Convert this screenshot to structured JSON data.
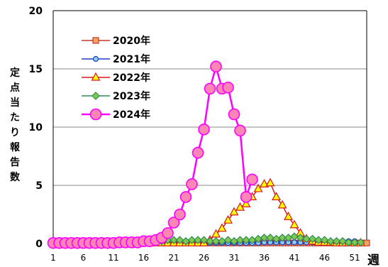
{
  "chart_data": {
    "type": "line",
    "ylabel": "定点当たり報告数",
    "xlabel": "週",
    "ylim": [
      0,
      20
    ],
    "yticks": [
      0,
      5,
      10,
      15,
      20
    ],
    "xlim": [
      1,
      53
    ],
    "xticks": [
      1,
      6,
      11,
      16,
      21,
      26,
      31,
      36,
      41,
      46,
      51
    ],
    "grid": "horizontal",
    "legend_position": "upper-left",
    "series": [
      {
        "name": "2020年",
        "color": "#c0392b",
        "fill": "#f4a460",
        "marker": "square",
        "x": [
          1,
          2,
          3,
          4,
          5,
          6,
          7,
          8,
          9,
          10,
          11,
          12,
          13,
          14,
          15,
          16,
          17,
          18,
          19,
          20,
          21,
          22,
          23,
          24,
          25,
          26,
          27,
          28,
          29,
          30,
          31,
          32,
          33,
          34,
          35,
          36,
          37,
          38,
          39,
          40,
          41,
          42,
          43,
          44,
          45,
          46,
          47,
          48,
          49,
          50,
          51,
          52,
          53
        ],
        "y": [
          0.2,
          0.2,
          0.1,
          0.1,
          0.1,
          0.05,
          0.05,
          0.05,
          0.05,
          0.05,
          0.05,
          0.05,
          0.05,
          0.05,
          0.05,
          0.05,
          0.05,
          0.05,
          0.05,
          0.05,
          0.05,
          0.05,
          0.05,
          0.05,
          0.05,
          0.05,
          0.05,
          0.05,
          0.05,
          0.05,
          0.05,
          0.05,
          0.05,
          0.05,
          0.05,
          0.05,
          0.05,
          0.05,
          0.05,
          0.05,
          0.05,
          0.05,
          0.05,
          0.05,
          0.05,
          0.05,
          0.05,
          0.05,
          0.05,
          0.05,
          0.05,
          0.05,
          0.05
        ]
      },
      {
        "name": "2021年",
        "color": "#1f3fbf",
        "fill": "#87cefa",
        "marker": "circle",
        "x": [
          1,
          2,
          3,
          4,
          5,
          6,
          7,
          8,
          9,
          10,
          11,
          12,
          13,
          14,
          15,
          16,
          17,
          18,
          19,
          20,
          21,
          22,
          23,
          24,
          25,
          26,
          27,
          28,
          29,
          30,
          31,
          32,
          33,
          34,
          35,
          36,
          37,
          38,
          39,
          40,
          41,
          42,
          43,
          44,
          45,
          46,
          47,
          48,
          49,
          50,
          51,
          52
        ],
        "y": [
          0.05,
          0.05,
          0.05,
          0.05,
          0.05,
          0.05,
          0.05,
          0.05,
          0.05,
          0.05,
          0.05,
          0.05,
          0.05,
          0.05,
          0.05,
          0.05,
          0.05,
          0.05,
          0.05,
          0.05,
          0.05,
          0.05,
          0.05,
          0.05,
          0.05,
          0.05,
          0.05,
          0.05,
          0.05,
          0.05,
          0.05,
          0.05,
          0.05,
          0.05,
          0.05,
          0.1,
          0.1,
          0.1,
          0.1,
          0.1,
          0.1,
          0.1,
          0.1,
          0.1,
          0.1,
          0.1,
          0.1,
          0.1,
          0.1,
          0.2,
          0.2,
          0.1
        ]
      },
      {
        "name": "2022年",
        "color": "#d7191c",
        "fill": "#ffff00",
        "marker": "triangle",
        "x": [
          1,
          2,
          3,
          4,
          5,
          6,
          7,
          8,
          9,
          10,
          11,
          12,
          13,
          14,
          15,
          16,
          17,
          18,
          19,
          20,
          21,
          22,
          23,
          24,
          25,
          26,
          27,
          28,
          29,
          30,
          31,
          32,
          33,
          34,
          35,
          36,
          37,
          38,
          39,
          40,
          41,
          42,
          43,
          44,
          45,
          46,
          47,
          48,
          49,
          50,
          51,
          52
        ],
        "y": [
          0.05,
          0.05,
          0.05,
          0.05,
          0.05,
          0.05,
          0.05,
          0.05,
          0.05,
          0.05,
          0.05,
          0.05,
          0.05,
          0.05,
          0.05,
          0.05,
          0.05,
          0.05,
          0.05,
          0.05,
          0.05,
          0.05,
          0.05,
          0.05,
          0.05,
          0.05,
          0.3,
          0.8,
          1.3,
          2.0,
          2.7,
          3.1,
          3.4,
          4.0,
          4.7,
          5.1,
          5.2,
          4.0,
          3.3,
          2.3,
          1.6,
          0.9,
          0.4,
          0.2,
          0.1,
          0.1,
          0.1,
          0.05,
          0.05,
          0.05,
          0.05,
          0.05
        ]
      },
      {
        "name": "2023年",
        "color": "#2e8b57",
        "fill": "#7ec850",
        "marker": "diamond",
        "x": [
          1,
          2,
          3,
          4,
          5,
          6,
          7,
          8,
          9,
          10,
          11,
          12,
          13,
          14,
          15,
          16,
          17,
          18,
          19,
          20,
          21,
          22,
          23,
          24,
          25,
          26,
          27,
          28,
          29,
          30,
          31,
          32,
          33,
          34,
          35,
          36,
          37,
          38,
          39,
          40,
          41,
          42,
          43,
          44,
          45,
          46,
          47,
          48,
          49,
          50,
          51,
          52
        ],
        "y": [
          0.05,
          0.05,
          0.05,
          0.05,
          0.05,
          0.05,
          0.05,
          0.05,
          0.05,
          0.05,
          0.05,
          0.05,
          0.05,
          0.05,
          0.05,
          0.05,
          0.05,
          0.1,
          0.2,
          0.3,
          0.3,
          0.3,
          0.2,
          0.3,
          0.3,
          0.3,
          0.2,
          0.2,
          0.2,
          0.3,
          0.2,
          0.3,
          0.3,
          0.3,
          0.4,
          0.5,
          0.5,
          0.4,
          0.5,
          0.5,
          0.6,
          0.5,
          0.4,
          0.4,
          0.3,
          0.3,
          0.2,
          0.2,
          0.2,
          0.1,
          0.1,
          0.1
        ]
      },
      {
        "name": "2024年",
        "color": "#ff00ff",
        "fill": "#ff85b5",
        "marker": "circle-large",
        "x": [
          1,
          2,
          3,
          4,
          5,
          6,
          7,
          8,
          9,
          10,
          11,
          12,
          13,
          14,
          15,
          16,
          17,
          18,
          19,
          20,
          21,
          22,
          23,
          24,
          25,
          26,
          27,
          28,
          29,
          30,
          31,
          32,
          33,
          34
        ],
        "y": [
          0.05,
          0.05,
          0.05,
          0.05,
          0.05,
          0.05,
          0.05,
          0.05,
          0.05,
          0.05,
          0.05,
          0.1,
          0.1,
          0.1,
          0.1,
          0.2,
          0.2,
          0.3,
          0.5,
          0.9,
          1.8,
          2.5,
          4.0,
          5.1,
          7.8,
          9.8,
          13.3,
          15.2,
          13.3,
          13.4,
          11.1,
          9.7,
          4.0,
          5.5
        ]
      }
    ]
  }
}
